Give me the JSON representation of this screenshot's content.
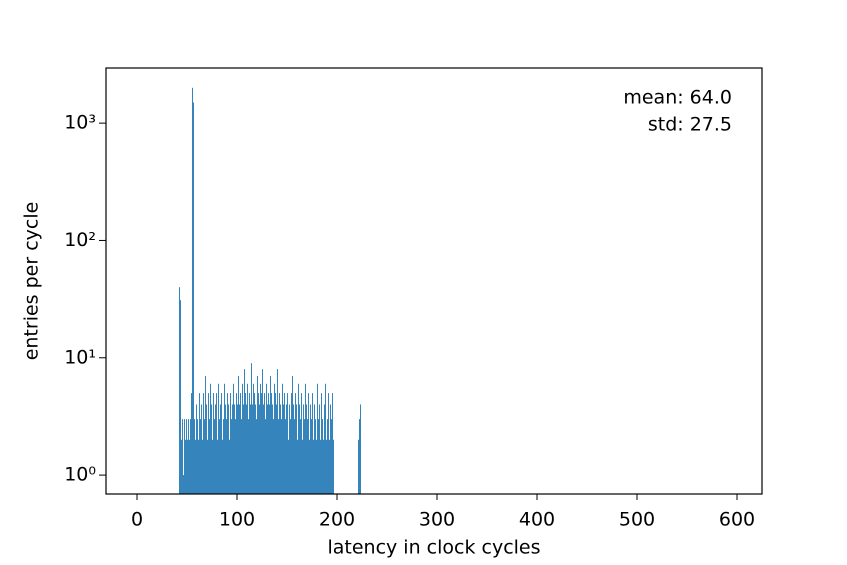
{
  "chart_data": {
    "type": "histogram",
    "xlabel": "latency in clock cycles",
    "ylabel": "entries per cycle",
    "annotations": [
      "mean: 64.0",
      "std: 27.5"
    ],
    "color": "#1f77b4",
    "log_y": true,
    "xlim": [
      -31,
      625
    ],
    "xticks": [
      0,
      100,
      200,
      300,
      400,
      500,
      600
    ],
    "ylim": [
      0.69,
      2950
    ],
    "yticks": [
      {
        "value": 1,
        "label": "10⁰"
      },
      {
        "value": 10,
        "label": "10¹"
      },
      {
        "value": 100,
        "label": "10²"
      },
      {
        "value": 1000,
        "label": "10³"
      }
    ],
    "bins": [
      42,
      43,
      44,
      45,
      46,
      47,
      48,
      49,
      50,
      51,
      52,
      53,
      54,
      55,
      56,
      57,
      58,
      59,
      60,
      61,
      62,
      63,
      64,
      65,
      66,
      67,
      68,
      69,
      70,
      71,
      72,
      73,
      74,
      75,
      76,
      77,
      78,
      79,
      80,
      81,
      82,
      83,
      84,
      85,
      86,
      87,
      88,
      89,
      90,
      91,
      92,
      93,
      94,
      95,
      96,
      97,
      98,
      99,
      100,
      101,
      102,
      103,
      104,
      105,
      106,
      107,
      108,
      109,
      110,
      111,
      112,
      113,
      114,
      115,
      116,
      117,
      118,
      119,
      120,
      121,
      122,
      123,
      124,
      125,
      126,
      127,
      128,
      129,
      130,
      131,
      132,
      133,
      134,
      135,
      136,
      137,
      138,
      139,
      140,
      141,
      142,
      143,
      144,
      145,
      146,
      147,
      148,
      149,
      150,
      151,
      152,
      153,
      154,
      155,
      156,
      157,
      158,
      159,
      160,
      161,
      162,
      163,
      164,
      165,
      166,
      167,
      168,
      169,
      170,
      171,
      172,
      173,
      174,
      175,
      176,
      177,
      178,
      179,
      180,
      181,
      182,
      183,
      184,
      185,
      186,
      187,
      188,
      189,
      190,
      191,
      192,
      193,
      194,
      195,
      196,
      197,
      198,
      199,
      200,
      201,
      202,
      203,
      204,
      205,
      206,
      207,
      208,
      209,
      210,
      211,
      212,
      213,
      214,
      215,
      216,
      217,
      218,
      219,
      220,
      221,
      222,
      223,
      224
    ],
    "values": [
      40,
      31,
      2,
      3,
      1,
      3,
      2,
      3,
      2,
      3,
      2,
      3,
      5,
      2000,
      1500,
      3,
      2,
      4,
      3,
      2,
      5,
      3,
      4,
      2,
      5,
      3,
      7,
      4,
      2,
      5,
      3,
      6,
      4,
      2,
      5,
      3,
      4,
      5,
      2,
      6,
      3,
      4,
      5,
      2,
      3,
      6,
      4,
      3,
      5,
      4,
      2,
      5,
      3,
      4,
      6,
      4,
      3,
      5,
      4,
      7,
      4,
      5,
      3,
      6,
      4,
      8,
      5,
      4,
      6,
      3,
      5,
      4,
      9,
      4,
      6,
      5,
      4,
      3,
      7,
      5,
      4,
      6,
      5,
      8,
      4,
      5,
      3,
      6,
      4,
      5,
      4,
      7,
      5,
      4,
      3,
      6,
      5,
      4,
      8,
      3,
      5,
      4,
      3,
      6,
      4,
      5,
      3,
      4,
      5,
      2,
      4,
      3,
      5,
      7,
      4,
      3,
      5,
      4,
      2,
      6,
      4,
      3,
      5,
      2,
      4,
      3,
      6,
      4,
      3,
      5,
      2,
      4,
      3,
      5,
      2,
      4,
      3,
      2,
      6,
      3,
      4,
      2,
      5,
      3,
      2,
      4,
      6,
      2,
      3,
      5,
      2,
      4,
      3,
      5,
      2,
      0,
      0,
      0,
      0,
      0,
      0,
      0,
      0,
      0,
      0,
      0,
      0,
      0,
      0,
      0,
      0,
      0,
      0,
      0,
      0,
      0,
      0,
      0,
      0,
      2,
      3,
      4
    ]
  }
}
